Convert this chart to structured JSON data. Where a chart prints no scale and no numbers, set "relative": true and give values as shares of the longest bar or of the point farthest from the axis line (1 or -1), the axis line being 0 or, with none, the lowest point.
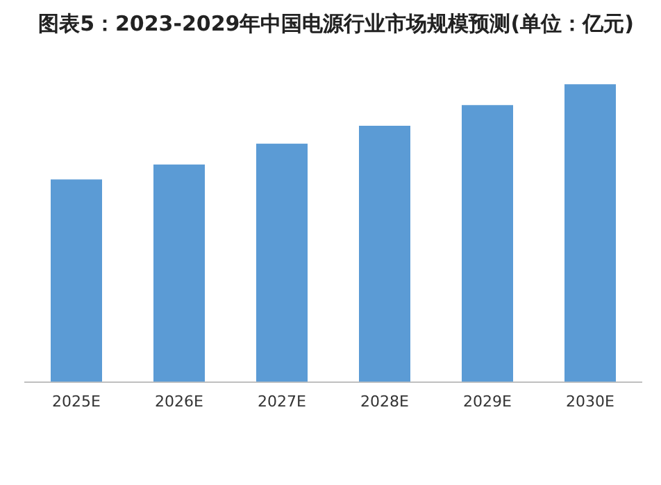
{
  "chart_data": {
    "type": "bar",
    "title": "图表5：2023-2029年中国电源行业市场规模预测(单位：亿元)",
    "categories": [
      "2025E",
      "2026E",
      "2027E",
      "2028E",
      "2029E",
      "2030E"
    ],
    "values": [
      0.68,
      0.73,
      0.8,
      0.86,
      0.93,
      1
    ],
    "color": "#5b9bd5",
    "relative": true
  }
}
